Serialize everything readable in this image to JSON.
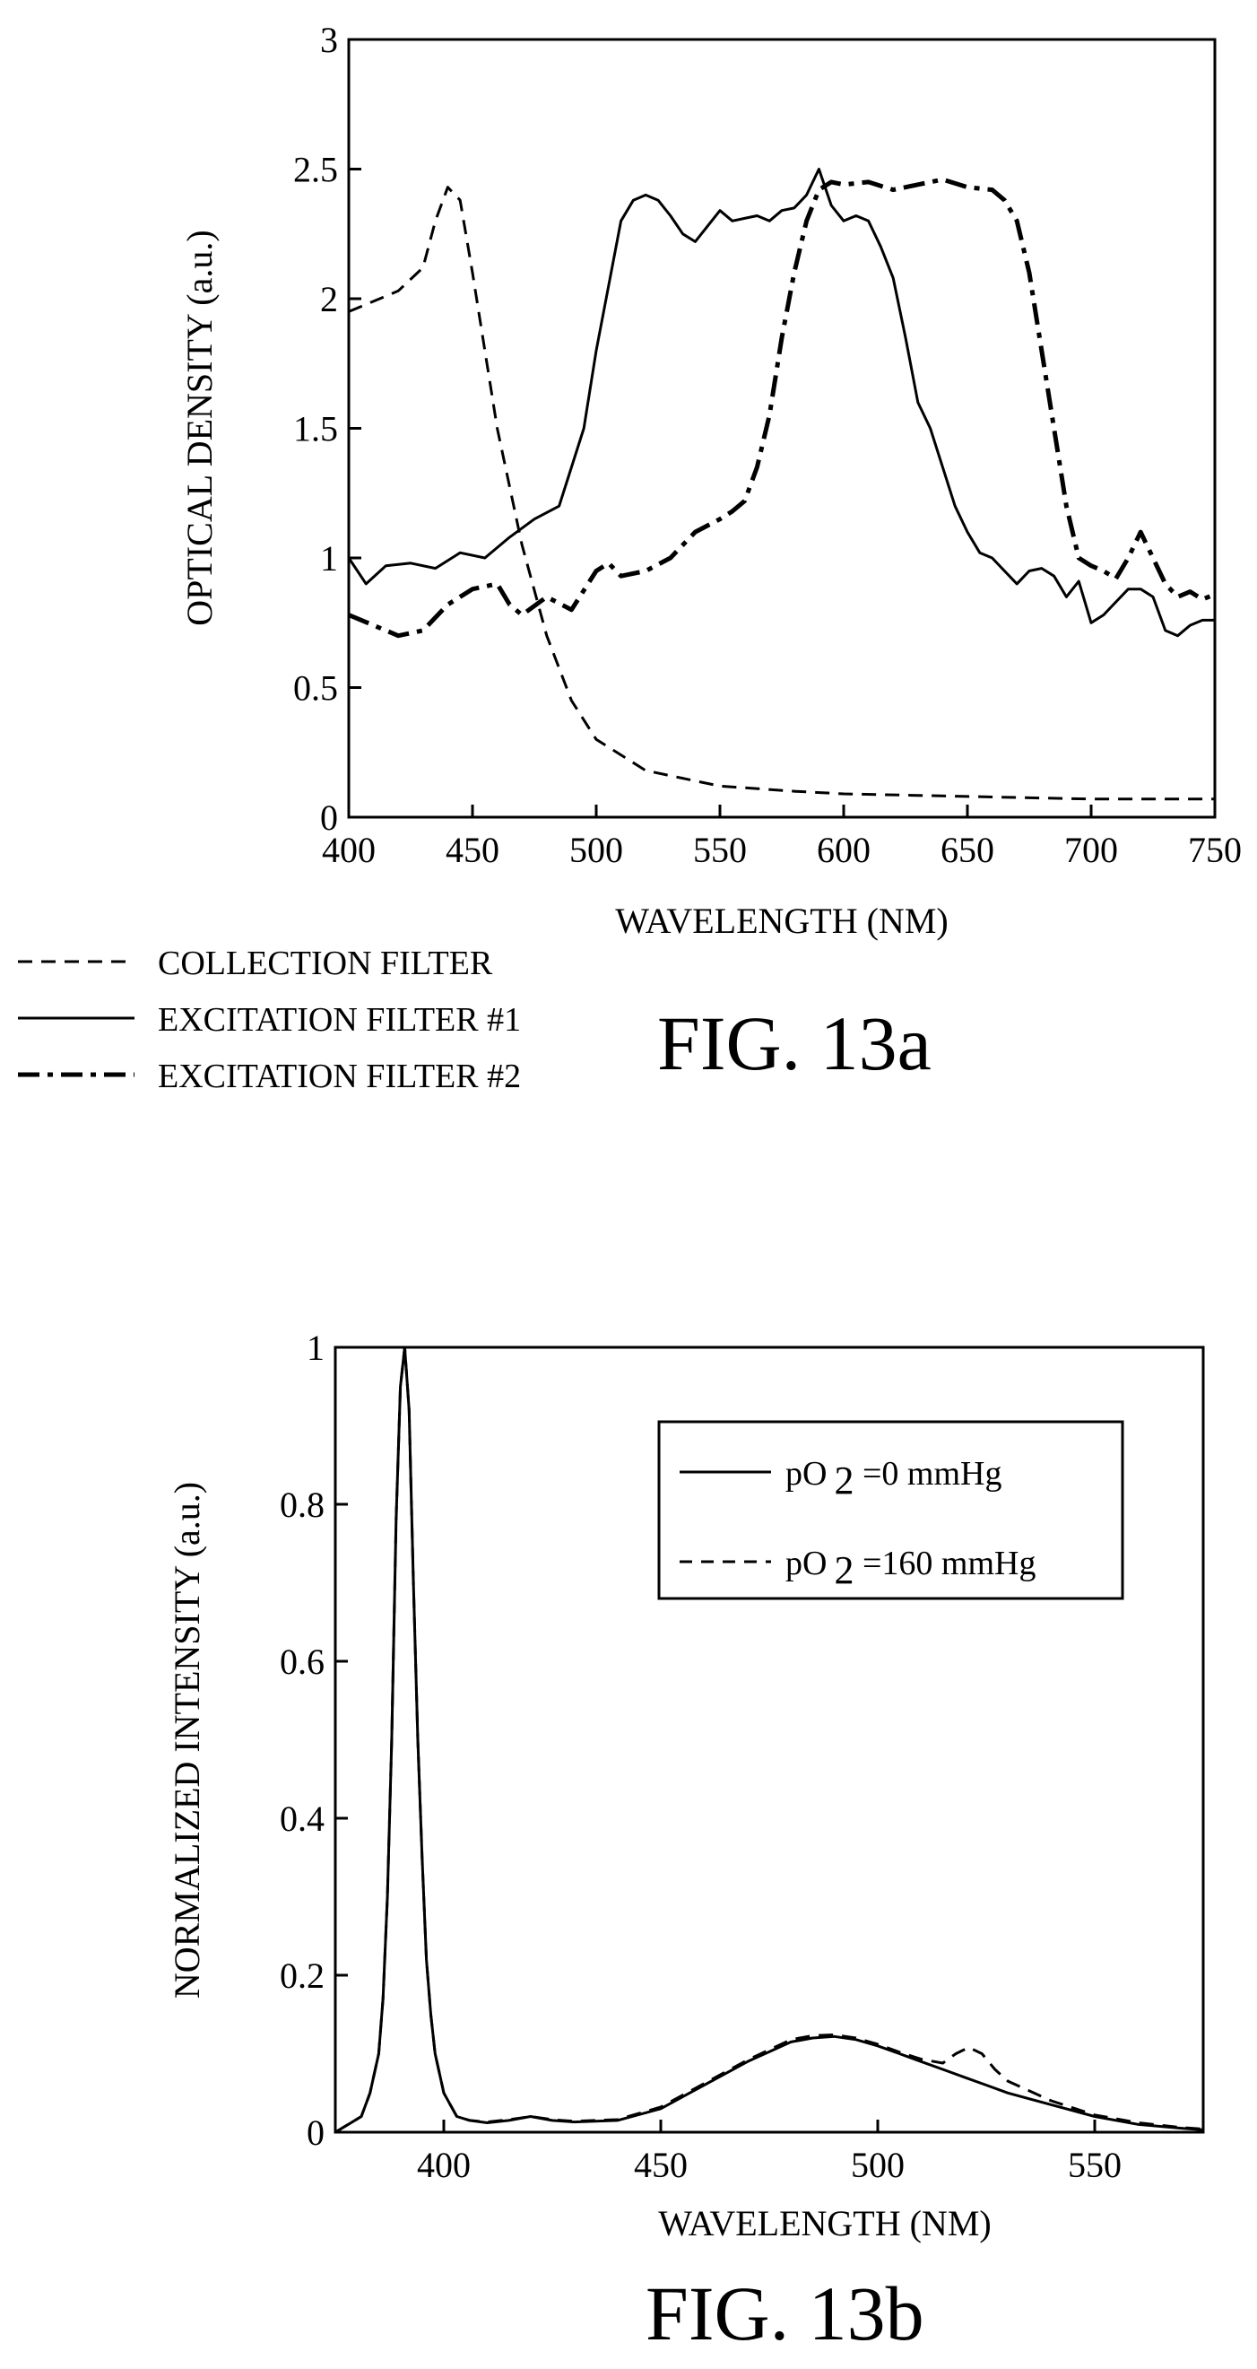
{
  "chart_data": [
    {
      "type": "line",
      "figure_label": "FIG. 13a",
      "xlabel": "WAVELENGTH (NM)",
      "ylabel": "OPTICAL DENSITY (a.u.)",
      "xlim": [
        400,
        750
      ],
      "ylim": [
        0,
        3
      ],
      "xticks": [
        "400",
        "450",
        "500",
        "550",
        "600",
        "650",
        "700",
        "750"
      ],
      "yticks": [
        "0",
        "0.5",
        "1",
        "1.5",
        "2",
        "2.5",
        "3"
      ],
      "grid": false,
      "legend_position": "below-left",
      "series": [
        {
          "name": "COLLECTION FILTER",
          "style": "dashed",
          "x": [
            400,
            410,
            420,
            430,
            435,
            440,
            445,
            450,
            455,
            460,
            470,
            480,
            490,
            500,
            520,
            550,
            580,
            600,
            650,
            700,
            750
          ],
          "y": [
            1.95,
            1.99,
            2.03,
            2.12,
            2.3,
            2.43,
            2.38,
            2.1,
            1.8,
            1.5,
            1.05,
            0.7,
            0.45,
            0.3,
            0.18,
            0.12,
            0.1,
            0.09,
            0.08,
            0.07,
            0.07
          ]
        },
        {
          "name": "EXCITATION FILTER #1",
          "style": "solid",
          "x": [
            400,
            407,
            415,
            425,
            435,
            445,
            455,
            465,
            475,
            485,
            495,
            500,
            505,
            510,
            515,
            520,
            525,
            530,
            535,
            540,
            545,
            550,
            555,
            560,
            565,
            570,
            575,
            580,
            585,
            590,
            595,
            600,
            605,
            610,
            615,
            620,
            625,
            630,
            635,
            640,
            645,
            650,
            655,
            660,
            665,
            670,
            675,
            680,
            685,
            690,
            695,
            700,
            705,
            710,
            715,
            720,
            725,
            730,
            735,
            740,
            745,
            750
          ],
          "y": [
            1.0,
            0.9,
            0.97,
            0.98,
            0.96,
            1.02,
            1.0,
            1.08,
            1.15,
            1.2,
            1.5,
            1.8,
            2.05,
            2.3,
            2.38,
            2.4,
            2.38,
            2.32,
            2.25,
            2.22,
            2.28,
            2.34,
            2.3,
            2.31,
            2.32,
            2.3,
            2.34,
            2.35,
            2.4,
            2.5,
            2.36,
            2.3,
            2.32,
            2.3,
            2.2,
            2.08,
            1.85,
            1.6,
            1.5,
            1.35,
            1.2,
            1.1,
            1.02,
            1.0,
            0.95,
            0.9,
            0.95,
            0.96,
            0.93,
            0.85,
            0.91,
            0.75,
            0.78,
            0.83,
            0.88,
            0.88,
            0.85,
            0.72,
            0.7,
            0.74,
            0.76,
            0.76
          ]
        },
        {
          "name": "EXCITATION FILTER #2",
          "style": "dash-dot",
          "x": [
            400,
            410,
            420,
            430,
            440,
            450,
            460,
            465,
            470,
            480,
            490,
            500,
            505,
            510,
            520,
            530,
            540,
            550,
            555,
            560,
            565,
            570,
            575,
            580,
            585,
            590,
            595,
            600,
            610,
            620,
            630,
            640,
            650,
            660,
            665,
            670,
            675,
            680,
            685,
            690,
            695,
            700,
            705,
            710,
            715,
            720,
            725,
            730,
            735,
            740,
            745,
            750
          ],
          "y": [
            0.78,
            0.74,
            0.7,
            0.72,
            0.82,
            0.88,
            0.9,
            0.82,
            0.78,
            0.85,
            0.8,
            0.95,
            0.98,
            0.93,
            0.95,
            1.0,
            1.1,
            1.15,
            1.18,
            1.22,
            1.35,
            1.55,
            1.85,
            2.1,
            2.3,
            2.42,
            2.45,
            2.44,
            2.45,
            2.42,
            2.44,
            2.46,
            2.43,
            2.42,
            2.38,
            2.3,
            2.1,
            1.8,
            1.5,
            1.2,
            1.0,
            0.97,
            0.95,
            0.92,
            1.0,
            1.1,
            1.0,
            0.9,
            0.85,
            0.87,
            0.84,
            0.86
          ]
        }
      ]
    },
    {
      "type": "line",
      "figure_label": "FIG. 13b",
      "xlabel": "WAVELENGTH (NM)",
      "ylabel": "NORMALIZED INTENSITY (a.u.)",
      "xlim": [
        375,
        575
      ],
      "ylim": [
        0,
        1
      ],
      "xticks": [
        "400",
        "450",
        "500",
        "550"
      ],
      "yticks": [
        "0",
        "0.2",
        "0.4",
        "0.6",
        "0.8",
        "1"
      ],
      "grid": false,
      "legend_position": "top-right",
      "series": [
        {
          "name_prefix": "pO",
          "name_sub": "2",
          "name_suffix": " =0 mmHg",
          "style": "solid",
          "x": [
            375,
            378,
            381,
            383,
            385,
            386,
            387,
            388,
            389,
            390,
            391,
            392,
            393,
            394,
            395,
            396,
            397,
            398,
            400,
            403,
            406,
            410,
            415,
            420,
            425,
            430,
            440,
            450,
            460,
            470,
            480,
            485,
            490,
            495,
            500,
            505,
            510,
            515,
            520,
            525,
            530,
            540,
            550,
            560,
            570,
            575
          ],
          "y": [
            0.0,
            0.01,
            0.02,
            0.05,
            0.1,
            0.17,
            0.3,
            0.5,
            0.78,
            0.95,
            1.0,
            0.92,
            0.7,
            0.5,
            0.35,
            0.22,
            0.15,
            0.1,
            0.05,
            0.02,
            0.015,
            0.012,
            0.015,
            0.02,
            0.015,
            0.013,
            0.015,
            0.03,
            0.06,
            0.09,
            0.115,
            0.12,
            0.122,
            0.118,
            0.11,
            0.1,
            0.09,
            0.08,
            0.07,
            0.06,
            0.05,
            0.035,
            0.02,
            0.01,
            0.005,
            0.003
          ]
        },
        {
          "name_prefix": "pO",
          "name_sub": "2",
          "name_suffix": " =160 mmHg",
          "style": "dashed",
          "x": [
            375,
            378,
            381,
            383,
            385,
            386,
            387,
            388,
            389,
            390,
            391,
            392,
            393,
            394,
            395,
            396,
            397,
            398,
            400,
            403,
            406,
            410,
            415,
            420,
            425,
            430,
            440,
            450,
            460,
            470,
            480,
            485,
            490,
            495,
            500,
            505,
            510,
            515,
            518,
            521,
            524,
            527,
            530,
            540,
            550,
            560,
            570,
            575
          ],
          "y": [
            0.0,
            0.01,
            0.02,
            0.05,
            0.1,
            0.17,
            0.3,
            0.5,
            0.78,
            0.95,
            1.0,
            0.92,
            0.7,
            0.5,
            0.35,
            0.22,
            0.15,
            0.1,
            0.05,
            0.02,
            0.015,
            0.013,
            0.016,
            0.02,
            0.016,
            0.014,
            0.016,
            0.032,
            0.062,
            0.092,
            0.118,
            0.123,
            0.124,
            0.12,
            0.112,
            0.102,
            0.093,
            0.088,
            0.1,
            0.108,
            0.1,
            0.08,
            0.065,
            0.04,
            0.022,
            0.012,
            0.006,
            0.004
          ]
        }
      ]
    }
  ]
}
